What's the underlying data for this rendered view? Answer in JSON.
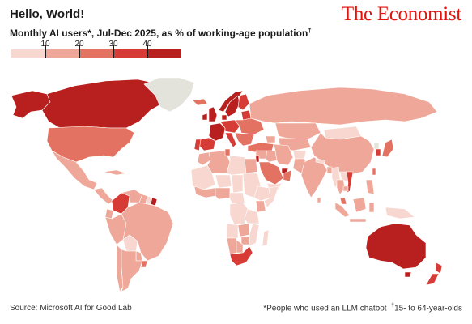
{
  "header": {
    "title": "Hello, World!",
    "publication": "The Economist",
    "subtitle": "Monthly AI users*, Jul-Dec 2025, as % of working-age population",
    "subtitle_mark": "†"
  },
  "legend": {
    "ticks": [
      "10",
      "20",
      "30",
      "40"
    ],
    "colors": [
      "#f7d7cf",
      "#eea798",
      "#e37263",
      "#d63c35",
      "#b8201f"
    ]
  },
  "footer": {
    "source": "Source: Microsoft AI for Good Lab",
    "note_1": "*People who used an LLM chatbot",
    "note_2_mark": "†",
    "note_2": "15- to 64-year-olds"
  },
  "colors": {
    "nodata": "#e3e3dc",
    "border": "#ffffff",
    "brand": "#e3120b"
  },
  "map_regions": [
    {
      "name": "Canada",
      "bin": 4
    },
    {
      "name": "Alaska",
      "bin": 4
    },
    {
      "name": "United States",
      "bin": 2
    },
    {
      "name": "Greenland",
      "bin": -1
    },
    {
      "name": "Mexico",
      "bin": 1
    },
    {
      "name": "Central America",
      "bin": 1
    },
    {
      "name": "Cuba",
      "bin": 1
    },
    {
      "name": "Colombia",
      "bin": 3
    },
    {
      "name": "Venezuela",
      "bin": 1
    },
    {
      "name": "Guyana",
      "bin": 1
    },
    {
      "name": "Suriname",
      "bin": 0
    },
    {
      "name": "French Guiana",
      "bin": 4
    },
    {
      "name": "Ecuador",
      "bin": 1
    },
    {
      "name": "Peru",
      "bin": 1
    },
    {
      "name": "Brazil",
      "bin": 1
    },
    {
      "name": "Bolivia",
      "bin": 0
    },
    {
      "name": "Paraguay",
      "bin": 1
    },
    {
      "name": "Chile",
      "bin": 1
    },
    {
      "name": "Argentina",
      "bin": 1
    },
    {
      "name": "Uruguay",
      "bin": 2
    },
    {
      "name": "Iceland",
      "bin": 2
    },
    {
      "name": "Ireland",
      "bin": 4
    },
    {
      "name": "United Kingdom",
      "bin": 4
    },
    {
      "name": "Norway",
      "bin": 4
    },
    {
      "name": "Sweden",
      "bin": 4
    },
    {
      "name": "Finland",
      "bin": 3
    },
    {
      "name": "Denmark",
      "bin": 4
    },
    {
      "name": "France",
      "bin": 4
    },
    {
      "name": "Spain",
      "bin": 3
    },
    {
      "name": "Portugal",
      "bin": 3
    },
    {
      "name": "Central Europe",
      "bin": 3
    },
    {
      "name": "Italy",
      "bin": 3
    },
    {
      "name": "Eastern Europe",
      "bin": 2
    },
    {
      "name": "Balkans",
      "bin": 2
    },
    {
      "name": "Baltics",
      "bin": 3
    },
    {
      "name": "Russia",
      "bin": 1
    },
    {
      "name": "Turkey",
      "bin": 2
    },
    {
      "name": "Caucasus",
      "bin": 1
    },
    {
      "name": "Kazakhstan",
      "bin": 1
    },
    {
      "name": "Central Asia",
      "bin": 1
    },
    {
      "name": "Mongolia",
      "bin": 0
    },
    {
      "name": "China",
      "bin": 1
    },
    {
      "name": "North Korea",
      "bin": -1
    },
    {
      "name": "South Korea",
      "bin": 3
    },
    {
      "name": "Japan",
      "bin": 2
    },
    {
      "name": "Taiwan",
      "bin": 2
    },
    {
      "name": "Israel",
      "bin": 4
    },
    {
      "name": "Levant",
      "bin": 1
    },
    {
      "name": "Iraq",
      "bin": 1
    },
    {
      "name": "Iran",
      "bin": 1
    },
    {
      "name": "Saudi Arabia",
      "bin": 2
    },
    {
      "name": "UAE",
      "bin": 4
    },
    {
      "name": "Oman",
      "bin": 2
    },
    {
      "name": "Yemen",
      "bin": 0
    },
    {
      "name": "Afghanistan",
      "bin": 0
    },
    {
      "name": "Pakistan",
      "bin": 1
    },
    {
      "name": "India",
      "bin": 1
    },
    {
      "name": "Nepal",
      "bin": 0
    },
    {
      "name": "Bangladesh",
      "bin": 1
    },
    {
      "name": "Sri Lanka",
      "bin": 1
    },
    {
      "name": "Myanmar",
      "bin": 0
    },
    {
      "name": "Thailand",
      "bin": 1
    },
    {
      "name": "Laos",
      "bin": 0
    },
    {
      "name": "Vietnam",
      "bin": 3
    },
    {
      "name": "Cambodia",
      "bin": 1
    },
    {
      "name": "Malaysia",
      "bin": 2
    },
    {
      "name": "Sumatra",
      "bin": 1
    },
    {
      "name": "Java",
      "bin": 1
    },
    {
      "name": "Borneo",
      "bin": 1
    },
    {
      "name": "Sulawesi",
      "bin": 1
    },
    {
      "name": "New Guinea",
      "bin": 0
    },
    {
      "name": "Philippines",
      "bin": 1
    },
    {
      "name": "Australia",
      "bin": 4
    },
    {
      "name": "Tasmania",
      "bin": 4
    },
    {
      "name": "New Zealand North",
      "bin": 3
    },
    {
      "name": "New Zealand South",
      "bin": 3
    },
    {
      "name": "Morocco",
      "bin": 1
    },
    {
      "name": "Algeria",
      "bin": 1
    },
    {
      "name": "Tunisia",
      "bin": 2
    },
    {
      "name": "Libya",
      "bin": 0
    },
    {
      "name": "Egypt",
      "bin": 1
    },
    {
      "name": "West Sahel",
      "bin": 0
    },
    {
      "name": "Niger",
      "bin": 0
    },
    {
      "name": "Chad",
      "bin": 0
    },
    {
      "name": "Sudan",
      "bin": 0
    },
    {
      "name": "West Africa coast",
      "bin": 1
    },
    {
      "name": "Nigeria",
      "bin": 1
    },
    {
      "name": "Central Africa",
      "bin": 0
    },
    {
      "name": "Ethiopia",
      "bin": 0
    },
    {
      "name": "Somalia",
      "bin": 0
    },
    {
      "name": "Kenya",
      "bin": 1
    },
    {
      "name": "Tanzania",
      "bin": 0
    },
    {
      "name": "DR Congo",
      "bin": 0
    },
    {
      "name": "Angola",
      "bin": 0
    },
    {
      "name": "Zambia",
      "bin": 1
    },
    {
      "name": "Mozambique",
      "bin": 0
    },
    {
      "name": "Namibia",
      "bin": 1
    },
    {
      "name": "Botswana",
      "bin": 1
    },
    {
      "name": "South Africa",
      "bin": 3
    },
    {
      "name": "Madagascar",
      "bin": 0
    },
    {
      "name": "Zimbabwe",
      "bin": 1
    }
  ]
}
